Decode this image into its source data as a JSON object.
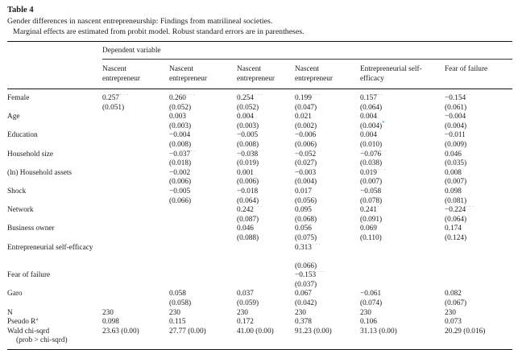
{
  "accent_star_color": "#2e7cb8",
  "title": "Table 4",
  "caption": "Gender differences in nascent entrepreneurship: Findings from matrilineal societies.",
  "subcaption": "Marginal effects are estimated from probit model. Robust standard errors are in parentheses.",
  "header": {
    "group_label": "Dependent variable",
    "columns": [
      "Nascent entrepreneur",
      "Nascent entrepreneur",
      "Nascent entrepreneur",
      "Nascent entrepreneur",
      "Entrepreneurial self-efficacy",
      "Fear of failure"
    ]
  },
  "rows": [
    {
      "label": "Female",
      "tall": false,
      "cells": [
        {
          "c": "0.257",
          "s": "***",
          "e": "(0.051)"
        },
        {
          "c": "0.260",
          "s": "***",
          "e": "(0.052)"
        },
        {
          "c": "0.254",
          "s": "***",
          "e": "(0.052)"
        },
        {
          "c": "0.199",
          "s": "***",
          "e": "(0.047)"
        },
        {
          "c": "0.157",
          "s": "**",
          "e": "(0.064)"
        },
        {
          "c": "−0.154",
          "s": "**",
          "e": "(0.061)"
        }
      ]
    },
    {
      "label": "Age",
      "tall": false,
      "cells": [
        null,
        {
          "c": "0.003",
          "e": "(0.003)"
        },
        {
          "c": "0.004",
          "e": "(0.003)"
        },
        {
          "c": "0.021",
          "e": "(0.002)"
        },
        {
          "c": "0.004",
          "e": "(0.004)",
          "es": "*"
        },
        {
          "c": "−0.004",
          "e": "(0.004)"
        }
      ]
    },
    {
      "label": "Education",
      "tall": false,
      "cells": [
        null,
        {
          "c": "−0.004",
          "e": "(0.008)"
        },
        {
          "c": "−0.005",
          "e": "(0.008)"
        },
        {
          "c": "−0.006",
          "e": "(0.006)"
        },
        {
          "c": "0.004",
          "e": "(0.010)"
        },
        {
          "c": "−0.011",
          "e": "(0.009)"
        }
      ]
    },
    {
      "label": "Household size",
      "tall": false,
      "cells": [
        null,
        {
          "c": "−0.037",
          "s": "**",
          "e": "(0.018)"
        },
        {
          "c": "−0.038",
          "s": "**",
          "e": "(0.019)"
        },
        {
          "c": "−0.052",
          "s": "**",
          "e": "(0.027)"
        },
        {
          "c": "−0.076",
          "s": "**",
          "e": "(0.038)"
        },
        {
          "c": "0.046",
          "e": "(0.035)"
        }
      ]
    },
    {
      "label": "(ln) Household assets",
      "tall": false,
      "cells": [
        null,
        {
          "c": "−0.002",
          "e": "(0.006)"
        },
        {
          "c": "0.001",
          "e": "(0.006)"
        },
        {
          "c": "−0.003",
          "e": "(0.004)"
        },
        {
          "c": "0.019",
          "s": "***",
          "e": "(0.007)"
        },
        {
          "c": "0.008",
          "e": "(0.007)"
        }
      ]
    },
    {
      "label": "Shock",
      "tall": false,
      "cells": [
        null,
        {
          "c": "−0.005",
          "e": "(0.066)"
        },
        {
          "c": "−0.018",
          "e": "(0.064)"
        },
        {
          "c": "0.017",
          "e": "(0.056)"
        },
        {
          "c": "−0.058",
          "e": "(0.078)"
        },
        {
          "c": "0.098",
          "e": "(0.081)"
        }
      ]
    },
    {
      "label": "Network",
      "tall": false,
      "cells": [
        null,
        null,
        {
          "c": "0.242",
          "s": "***",
          "e": "(0.087)"
        },
        {
          "c": "0.095",
          "e": "(0.068)"
        },
        {
          "c": "0.241",
          "s": "**",
          "e": "(0.091)"
        },
        {
          "c": "−0.224",
          "s": "***",
          "e": "(0.064)"
        }
      ]
    },
    {
      "label": "Business owner",
      "tall": false,
      "cells": [
        null,
        null,
        {
          "c": "0.046",
          "e": "(0.088)"
        },
        {
          "c": "0.056",
          "e": "(0.075)"
        },
        {
          "c": "0.069",
          "e": "(0.110)"
        },
        {
          "c": "0.174",
          "e": "(0.124)"
        }
      ]
    },
    {
      "label": "Entrepreneurial self-efficacy",
      "tall": true,
      "cells": [
        null,
        null,
        null,
        {
          "c": "0.313",
          "s": "***",
          "e": "(0.066)"
        },
        null,
        null
      ]
    },
    {
      "label": "Fear of failure",
      "tall": false,
      "cells": [
        null,
        null,
        null,
        {
          "c": "−0.153",
          "s": "***",
          "e": "(0.037)"
        },
        null,
        null
      ]
    },
    {
      "label": "Garo",
      "tall": false,
      "cells": [
        null,
        {
          "c": "0.058",
          "e": "(0.058)"
        },
        {
          "c": "0.037",
          "e": "(0.059)"
        },
        {
          "c": "0.067",
          "e": "(0.042)"
        },
        {
          "c": "−0.061",
          "e": "(0.074)"
        },
        {
          "c": "0.082",
          "e": "(0.067)"
        }
      ]
    }
  ],
  "stats": [
    {
      "label": "N",
      "sup": "",
      "label2": "",
      "values": [
        "230",
        "230",
        "230",
        "230",
        "230",
        "230"
      ]
    },
    {
      "label": "Pseudo R",
      "sup": "2",
      "label2": "",
      "values": [
        "0.098",
        "0.115",
        "0.172",
        "0.378",
        "0.106",
        "0.073"
      ]
    },
    {
      "label": "Wald chi-sqrd",
      "sup": "",
      "label2": "(prob > chi-sqrd)",
      "values": [
        "23.63 (0.00)",
        "27.77 (0.00)",
        "41.00 (0.00)",
        "91.23 (0.00)",
        "31.13 (0.00)",
        "20.29 (0.016)"
      ]
    }
  ]
}
